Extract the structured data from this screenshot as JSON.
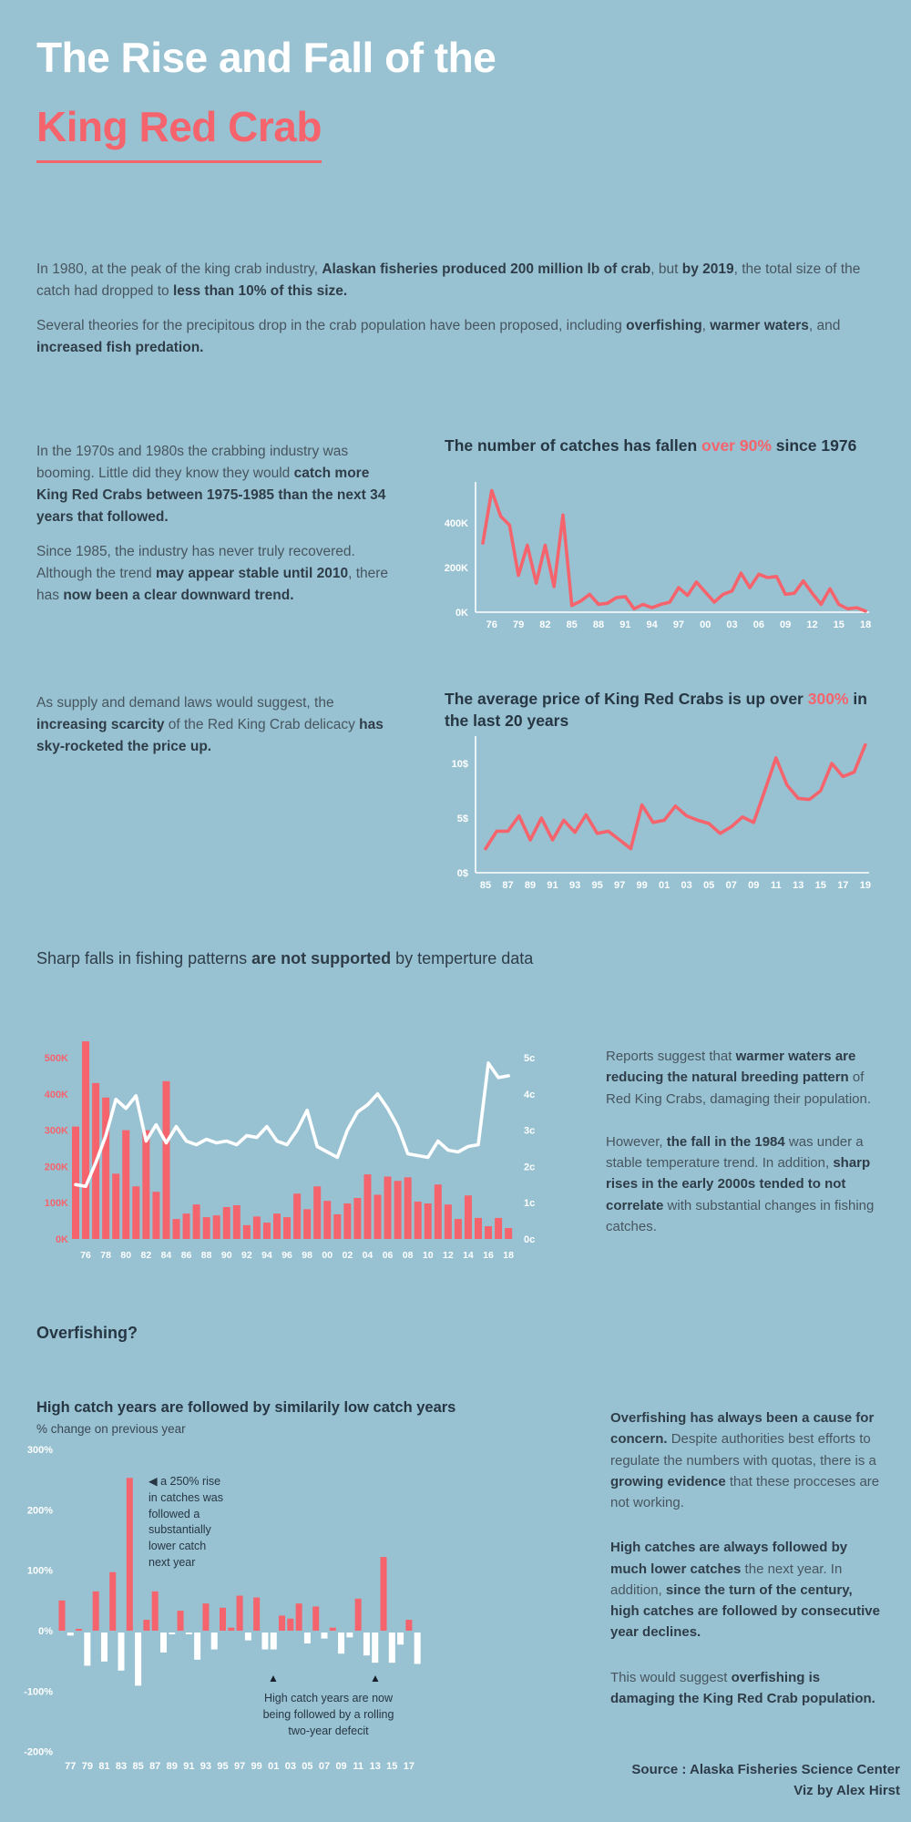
{
  "page": {
    "colors": {
      "background": "#98c2d2",
      "red": "#f5636c",
      "white": "#ffffff",
      "dark": "#273643",
      "body": "#47555f"
    }
  },
  "header": {
    "title_line1": "The Rise and Fall of the",
    "title_line2": "King Red Crab"
  },
  "intro": {
    "p1": [
      {
        "t": "In 1980, at the peak of the king crab industry, "
      },
      {
        "t": "Alaskan fisheries produced 200 million lb of crab",
        "b": true
      },
      {
        "t": ", but "
      },
      {
        "t": "by 2019",
        "b": true
      },
      {
        "t": ", the total size of the catch had dropped to "
      },
      {
        "t": "less than 10% of this size.",
        "b": true
      }
    ],
    "p2": [
      {
        "t": "Several theories for the precipitous drop in the crab population have been proposed, including "
      },
      {
        "t": "overfishing",
        "b": true
      },
      {
        "t": ", "
      },
      {
        "t": "warmer waters",
        "b": true
      },
      {
        "t": ", and "
      },
      {
        "t": "increased fish predation.",
        "b": true
      }
    ]
  },
  "section_catches": {
    "left_p1": [
      {
        "t": "In the 1970s and 1980s the crabbing industry was booming. Little did they know they would "
      },
      {
        "t": "catch more King Red Crabs between 1975-1985 than the next 34 years that followed.",
        "b": true
      }
    ],
    "left_p2": [
      {
        "t": "Since 1985, the industry has never truly recovered. Although the trend "
      },
      {
        "t": "may appear stable until 2010",
        "b": true
      },
      {
        "t": ", there has "
      },
      {
        "t": "now been a clear downward trend.",
        "b": true
      }
    ],
    "chart_title": [
      {
        "t": "The number of catches has fallen "
      },
      {
        "t": "over 90%",
        "c": "red"
      },
      {
        "t": " since 1976"
      }
    ]
  },
  "section_price": {
    "left_p1": [
      {
        "t": "As supply and demand laws would suggest, the "
      },
      {
        "t": "increasing scarcity",
        "b": true
      },
      {
        "t": " of the Red King Crab delicacy "
      },
      {
        "t": "has sky-rocketed the price up.",
        "b": true
      }
    ],
    "chart_title": [
      {
        "t": "The average price of King Red Crabs is up over "
      },
      {
        "t": "300%",
        "c": "red"
      },
      {
        "t": " in the last 20 years"
      }
    ]
  },
  "section_temp": {
    "heading": [
      {
        "t": "Sharp falls in fishing patterns "
      },
      {
        "t": "are not supported",
        "b": true
      },
      {
        "t": " by temperture data"
      }
    ],
    "right_p1": [
      {
        "t": "Reports suggest that "
      },
      {
        "t": "warmer waters are reducing the natural breeding pattern",
        "b": true
      },
      {
        "t": " of Red King Crabs, damaging their population."
      }
    ],
    "right_p2": [
      {
        "t": "However, "
      },
      {
        "t": "the fall in the 1984",
        "b": true
      },
      {
        "t": " was under a stable temperature trend. In addition, "
      },
      {
        "t": "sharp rises in the early 2000s tended to not correlate",
        "b": true
      },
      {
        "t": " with substantial changes in fishing catches."
      }
    ]
  },
  "section_overfishing": {
    "heading": "Overfishing?",
    "chart_title": "High catch years are followed by similarily low catch years",
    "chart_subtitle": "% change on previous year",
    "annotation1_marker": "◀",
    "annotation1_text": " a 250% rise in catches was followed a substantially lower catch next year",
    "annotation2_marker": "▲",
    "annotation2_text": "High catch years are now being followed by a rolling two-year defecit",
    "right_p1": [
      {
        "t": "Overfishing has always been a cause for concern.",
        "b": true
      },
      {
        "t": " Despite authorities best efforts to regulate the numbers with quotas, there is a "
      },
      {
        "t": "growing evidence",
        "b": true
      },
      {
        "t": " that these procceses are not working."
      }
    ],
    "right_p2": [
      {
        "t": "High catches are always followed by much lower catches",
        "b": true
      },
      {
        "t": " the next year. In addition, "
      },
      {
        "t": "since the turn of the century, high catches are followed by consecutive year declines.",
        "b": true
      }
    ],
    "right_p3": [
      {
        "t": "This would suggest "
      },
      {
        "t": "overfishing is damaging the King Red Crab population.",
        "b": true
      }
    ]
  },
  "source": {
    "line1": "Source : Alaska Fisheries Science Center",
    "line2": "Viz by Alex Hirst"
  },
  "chart_data": [
    {
      "id": "catches",
      "type": "line",
      "title": "The number of catches has fallen over 90% since 1976",
      "x_start_year": 1975,
      "values": [
        310,
        545,
        430,
        390,
        165,
        300,
        130,
        300,
        115,
        435,
        30,
        50,
        80,
        35,
        40,
        65,
        70,
        15,
        35,
        20,
        35,
        45,
        110,
        75,
        135,
        90,
        45,
        80,
        95,
        175,
        110,
        170,
        155,
        160,
        80,
        85,
        140,
        85,
        35,
        105,
        35,
        15,
        20,
        5
      ],
      "unit": "thousand catches",
      "y_ticks": [
        0,
        200,
        400
      ],
      "y_suffix": "K",
      "ylim": [
        0,
        570
      ],
      "x_tick_labels": [
        "76",
        "79",
        "82",
        "85",
        "88",
        "91",
        "94",
        "97",
        "00",
        "03",
        "06",
        "09",
        "12",
        "15",
        "18"
      ],
      "line_color": "#f5636c",
      "axis_color": "#ffffff"
    },
    {
      "id": "price",
      "type": "line",
      "title": "The average price of King Red Crabs is up over 300% in the last 20 years",
      "x_start_year": 1985,
      "values": [
        2.2,
        3.8,
        3.8,
        5.2,
        3.0,
        5.0,
        3.0,
        4.8,
        3.7,
        5.3,
        3.6,
        3.8,
        3.0,
        2.2,
        6.2,
        4.6,
        4.8,
        6.1,
        5.2,
        4.8,
        4.5,
        3.6,
        4.2,
        5.1,
        4.6,
        7.5,
        10.5,
        8.0,
        6.8,
        6.7,
        7.5,
        10.0,
        8.8,
        9.2,
        11.7
      ],
      "unit": "dollars",
      "y_ticks": [
        0,
        5,
        10
      ],
      "y_suffix": "$",
      "ylim": [
        0,
        12.5
      ],
      "x_tick_labels": [
        "85",
        "87",
        "89",
        "91",
        "93",
        "95",
        "97",
        "99",
        "01",
        "03",
        "05",
        "07",
        "09",
        "11",
        "13",
        "15",
        "17",
        "19"
      ],
      "line_color": "#f5636c",
      "axis_color": "#ffffff"
    },
    {
      "id": "temp_combo",
      "type": "bar+line",
      "title": "Catches (bars, K) vs water temperature (line, c)",
      "x_start_year": 1975,
      "bar_values": [
        310,
        545,
        430,
        390,
        180,
        300,
        145,
        300,
        130,
        435,
        55,
        70,
        95,
        60,
        65,
        88,
        93,
        38,
        62,
        45,
        70,
        60,
        125,
        82,
        145,
        105,
        68,
        98,
        113,
        178,
        122,
        172,
        160,
        170,
        103,
        98,
        150,
        95,
        55,
        120,
        58,
        35,
        58,
        30
      ],
      "line_values": [
        1.5,
        1.45,
        2.1,
        2.85,
        3.85,
        3.6,
        3.95,
        2.7,
        3.15,
        2.65,
        3.1,
        2.7,
        2.6,
        2.75,
        2.65,
        2.7,
        2.6,
        2.85,
        2.8,
        3.1,
        2.7,
        2.6,
        3.0,
        3.55,
        2.55,
        2.4,
        2.25,
        3.0,
        3.5,
        3.7,
        4.0,
        3.6,
        3.1,
        2.35,
        2.3,
        2.25,
        2.7,
        2.45,
        2.4,
        2.55,
        2.6,
        4.85,
        4.45,
        4.5
      ],
      "left_y_ticks": [
        "0K",
        "100K",
        "200K",
        "300K",
        "400K",
        "500K"
      ],
      "right_y_ticks": [
        "0c",
        "1c",
        "2c",
        "3c",
        "4c",
        "5c"
      ],
      "left_ylim": [
        0,
        550
      ],
      "right_ylim": [
        0,
        5.5
      ],
      "x_tick_labels": [
        "76",
        "78",
        "80",
        "82",
        "84",
        "86",
        "88",
        "90",
        "92",
        "94",
        "96",
        "98",
        "00",
        "02",
        "04",
        "06",
        "08",
        "10",
        "12",
        "14",
        "16",
        "18"
      ],
      "bar_color": "#f5636c",
      "line_color": "#ffffff"
    },
    {
      "id": "pct_change",
      "type": "diverging-bar",
      "title": "% change on previous year",
      "x_start_year": 1976,
      "values": [
        50,
        -5,
        3,
        -55,
        65,
        -48,
        97,
        -63,
        253,
        -88,
        18,
        65,
        -33,
        -3,
        33,
        -3,
        -45,
        45,
        -28,
        38,
        5,
        58,
        -13,
        55,
        -28,
        -28,
        25,
        20,
        45,
        -18,
        40,
        -10,
        5,
        -35,
        -8,
        53,
        -38,
        -50,
        122,
        -50,
        -20,
        18,
        -52
      ],
      "y_ticks": [
        300,
        200,
        100,
        0,
        -100,
        -200
      ],
      "y_suffix": "%",
      "ylim": [
        -200,
        300
      ],
      "x_tick_labels": [
        "77",
        "79",
        "81",
        "83",
        "85",
        "87",
        "89",
        "91",
        "93",
        "95",
        "97",
        "99",
        "01",
        "03",
        "05",
        "07",
        "09",
        "11",
        "13",
        "15",
        "17"
      ],
      "pos_color": "#f5636c",
      "neg_color": "#ffffff"
    }
  ]
}
